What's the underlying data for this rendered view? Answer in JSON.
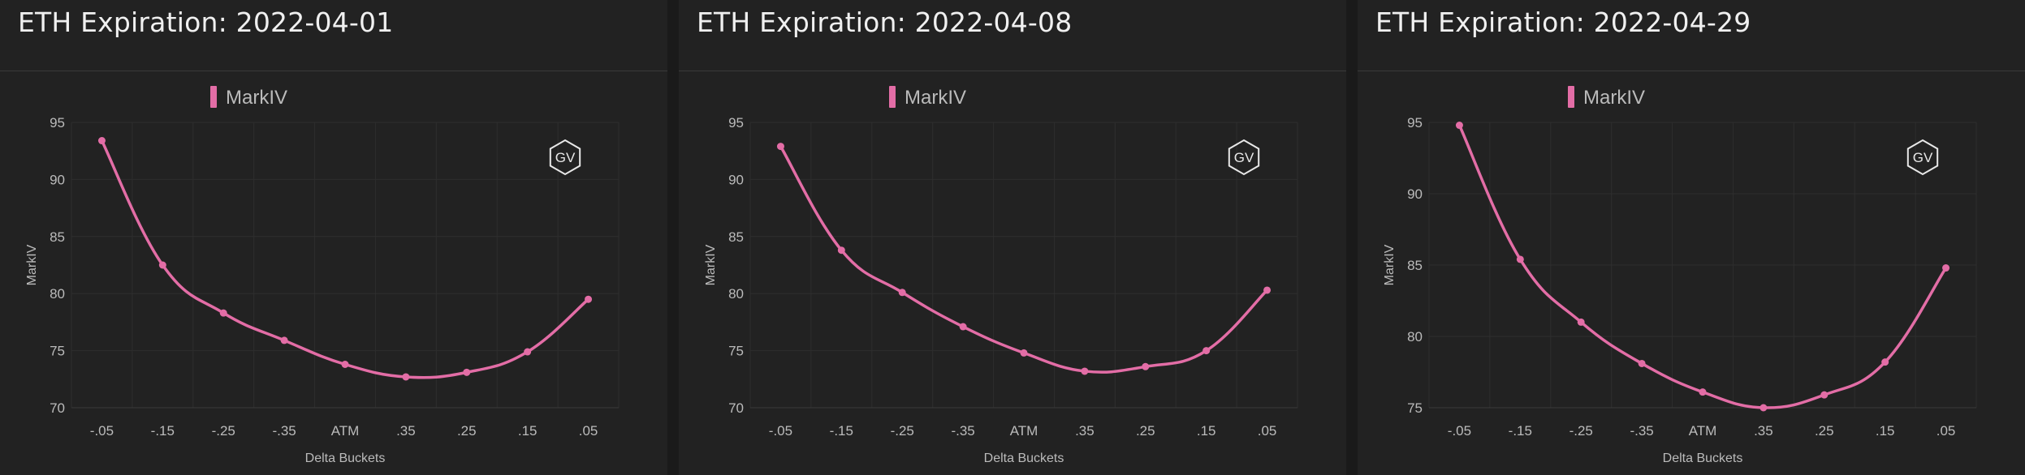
{
  "colors": {
    "series": "#e36da6",
    "background": "#222222",
    "grid": "#2e2e2e",
    "text": "#bbbbbb",
    "title": "#f0f0f0"
  },
  "panels": [
    {
      "title": "ETH Expiration: 2022-04-01",
      "chart_data": {
        "type": "line",
        "title": "ETH Expiration: 2022-04-01",
        "categories": [
          "-.05",
          "-.15",
          "-.25",
          "-.35",
          "ATM",
          ".35",
          ".25",
          ".15",
          ".05"
        ],
        "series": [
          {
            "name": "MarkIV",
            "values": [
              93.4,
              82.5,
              78.3,
              75.9,
              73.8,
              72.7,
              73.1,
              74.9,
              79.5
            ]
          }
        ],
        "xlabel": "Delta Buckets",
        "ylabel": "MarkIV",
        "ylim": [
          70,
          95
        ],
        "yticks": [
          70,
          75,
          80,
          85,
          90,
          95
        ],
        "grid": true,
        "legend": "top-center",
        "badge": "GV"
      }
    },
    {
      "title": "ETH Expiration: 2022-04-08",
      "chart_data": {
        "type": "line",
        "title": "ETH Expiration: 2022-04-08",
        "categories": [
          "-.05",
          "-.15",
          "-.25",
          "-.35",
          "ATM",
          ".35",
          ".25",
          ".15",
          ".05"
        ],
        "series": [
          {
            "name": "MarkIV",
            "values": [
              92.9,
              83.8,
              80.1,
              77.1,
              74.8,
              73.2,
              73.6,
              75.0,
              80.3
            ]
          }
        ],
        "xlabel": "Delta Buckets",
        "ylabel": "MarkIV",
        "ylim": [
          70,
          95
        ],
        "yticks": [
          70,
          75,
          80,
          85,
          90,
          95
        ],
        "grid": true,
        "legend": "top-center",
        "badge": "GV"
      }
    },
    {
      "title": "ETH Expiration: 2022-04-29",
      "chart_data": {
        "type": "line",
        "title": "ETH Expiration: 2022-04-29",
        "categories": [
          "-.05",
          "-.15",
          "-.25",
          "-.35",
          "ATM",
          ".35",
          ".25",
          ".15",
          ".05"
        ],
        "series": [
          {
            "name": "MarkIV",
            "values": [
              94.8,
              85.4,
              81.0,
              78.1,
              76.1,
              75.0,
              75.9,
              78.2,
              84.8
            ]
          }
        ],
        "xlabel": "Delta Buckets",
        "ylabel": "MarkIV",
        "ylim": [
          75,
          95
        ],
        "yticks": [
          75,
          80,
          85,
          90,
          95
        ],
        "grid": true,
        "legend": "top-center",
        "badge": "GV"
      }
    }
  ]
}
